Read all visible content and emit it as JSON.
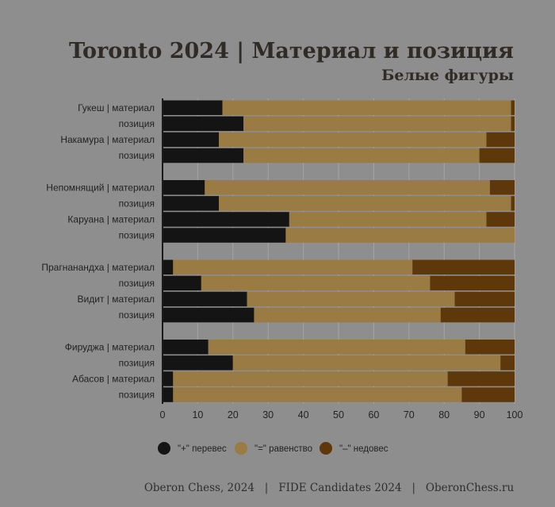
{
  "header": {
    "title": "Toronto 2024  | Материал и позиция",
    "subtitle": "Белые фигуры"
  },
  "footer": {
    "text": "Oberon Chess, 2024   |   FIDE Candidates 2024   |   OberonChess.ru"
  },
  "colors": {
    "background": "#8e8e8e",
    "plus": "#141414",
    "equal": "#9a7b44",
    "minus": "#5e370b",
    "grid": "#a5a5a5",
    "axis": "#1a1a1a"
  },
  "chart_data": {
    "type": "bar",
    "orientation": "horizontal",
    "stacked": true,
    "title": "Toronto 2024  | Материал и позиция",
    "subtitle": "Белые фигуры",
    "categories": [
      "Гукеш | материал",
      "позиция",
      "Накамура | материал",
      "позиция",
      "Непомнящий | материал",
      "позиция",
      "Каруана | материал",
      "позиция",
      "Прагнанандха | материал",
      "позиция",
      "Видит | материал",
      "позиция",
      "Фируджа | материал",
      "позиция",
      "Абасов | материал",
      "позиция"
    ],
    "groups": [
      [
        0,
        1,
        2,
        3
      ],
      [
        4,
        5,
        6,
        7
      ],
      [
        8,
        9,
        10,
        11
      ],
      [
        12,
        13,
        14,
        15
      ]
    ],
    "series": [
      {
        "name": "\"+\" перевес",
        "color": "#141414",
        "values": [
          17,
          23,
          16,
          23,
          12,
          16,
          36,
          35,
          3,
          11,
          24,
          26,
          13,
          20,
          3,
          3
        ]
      },
      {
        "name": "\"=\" равенство",
        "color": "#9a7b44",
        "values": [
          82,
          76,
          76,
          67,
          81,
          83,
          56,
          65,
          68,
          65,
          59,
          53,
          73,
          76,
          78,
          82
        ]
      },
      {
        "name": "\"–\" недовес",
        "color": "#5e370b",
        "values": [
          1,
          1,
          8,
          10,
          7,
          1,
          8,
          0,
          29,
          24,
          17,
          21,
          14,
          4,
          19,
          15
        ]
      }
    ],
    "x_ticks": [
      "0",
      "10",
      "20",
      "30",
      "40",
      "50",
      "60",
      "70",
      "80",
      "90",
      "100"
    ],
    "xlim": [
      0,
      100
    ],
    "grid": true,
    "legend_position": "bottom"
  }
}
